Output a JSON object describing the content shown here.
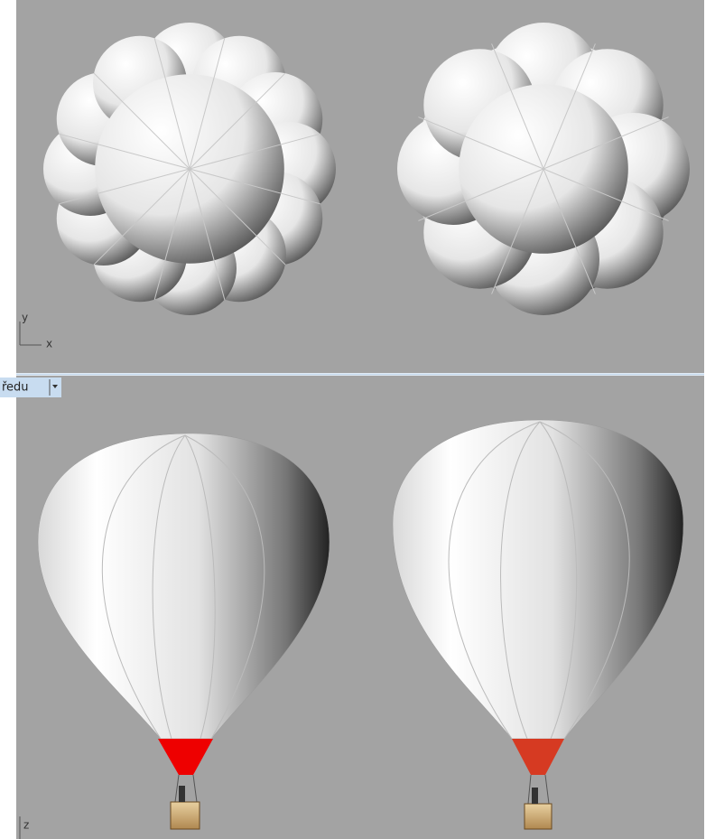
{
  "top_viewport": {
    "axis_labels": {
      "y": "y",
      "x": "x"
    }
  },
  "bottom_viewport": {
    "tab_label": "ředu",
    "axis_label": "z"
  }
}
